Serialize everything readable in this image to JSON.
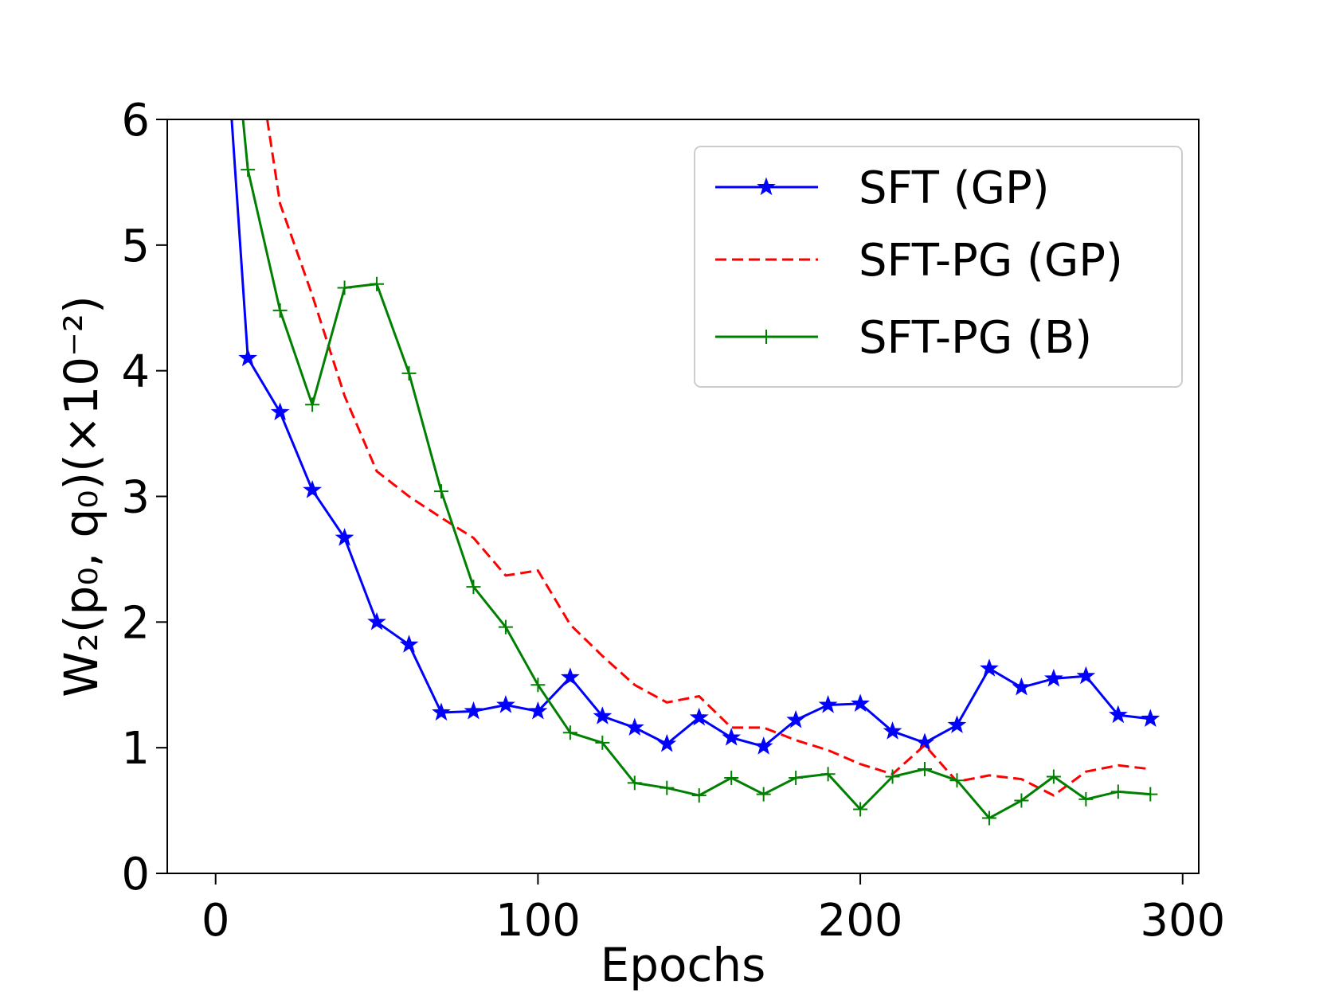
{
  "chart_data": {
    "type": "line",
    "title": "",
    "xlabel": "Epochs",
    "ylabel": "W₂(p₀, q₀)(×10⁻²)",
    "xlim": [
      -15,
      305
    ],
    "ylim": [
      0,
      6
    ],
    "xticks": [
      0,
      100,
      200,
      300
    ],
    "xtick_labels": [
      "0",
      "100",
      "200",
      "300"
    ],
    "yticks": [
      0,
      1,
      2,
      3,
      4,
      5,
      6
    ],
    "ytick_labels": [
      "0",
      "1",
      "2",
      "3",
      "4",
      "5",
      "6"
    ],
    "grid": false,
    "legend_position": "top-right",
    "series": [
      {
        "name": "SFT (GP)",
        "color": "#0000ff",
        "style": "solid",
        "marker": "star",
        "marker_from_index": 1,
        "x": [
          5,
          10,
          20,
          30,
          40,
          50,
          60,
          70,
          80,
          90,
          100,
          110,
          120,
          130,
          140,
          150,
          160,
          170,
          180,
          190,
          200,
          210,
          220,
          230,
          240,
          250,
          260,
          270,
          280,
          290
        ],
        "values": [
          6.0,
          4.1,
          3.67,
          3.05,
          2.67,
          2.0,
          1.82,
          1.28,
          1.29,
          1.34,
          1.29,
          1.56,
          1.25,
          1.16,
          1.03,
          1.24,
          1.08,
          1.01,
          1.22,
          1.34,
          1.35,
          1.13,
          1.04,
          1.18,
          1.63,
          1.48,
          1.55,
          1.57,
          1.26,
          1.23
        ]
      },
      {
        "name": "SFT-PG (GP)",
        "color": "#ff0000",
        "style": "dashed",
        "marker": "none",
        "marker_from_index": 0,
        "x": [
          16,
          20,
          30,
          40,
          50,
          60,
          70,
          80,
          90,
          100,
          110,
          120,
          130,
          140,
          150,
          160,
          170,
          180,
          190,
          200,
          210,
          220,
          230,
          240,
          250,
          260,
          270,
          280,
          290
        ],
        "values": [
          6.0,
          5.33,
          4.6,
          3.8,
          3.2,
          3.0,
          2.83,
          2.67,
          2.37,
          2.41,
          1.98,
          1.73,
          1.5,
          1.36,
          1.41,
          1.16,
          1.16,
          1.06,
          0.98,
          0.87,
          0.79,
          1.02,
          0.73,
          0.78,
          0.75,
          0.62,
          0.81,
          0.86,
          0.83
        ]
      },
      {
        "name": "SFT-PG (B)",
        "color": "#008000",
        "style": "solid",
        "marker": "plus",
        "marker_from_index": 1,
        "x": [
          8.5,
          10,
          20,
          30,
          40,
          50,
          60,
          70,
          80,
          90,
          100,
          110,
          120,
          130,
          140,
          150,
          160,
          170,
          180,
          190,
          200,
          210,
          220,
          230,
          240,
          250,
          260,
          270,
          280,
          290
        ],
        "values": [
          6.0,
          5.6,
          4.48,
          3.73,
          4.66,
          4.69,
          3.98,
          3.04,
          2.28,
          1.96,
          1.5,
          1.12,
          1.04,
          0.72,
          0.68,
          0.62,
          0.76,
          0.63,
          0.76,
          0.79,
          0.51,
          0.77,
          0.83,
          0.74,
          0.44,
          0.58,
          0.77,
          0.59,
          0.65,
          0.63
        ]
      }
    ]
  }
}
